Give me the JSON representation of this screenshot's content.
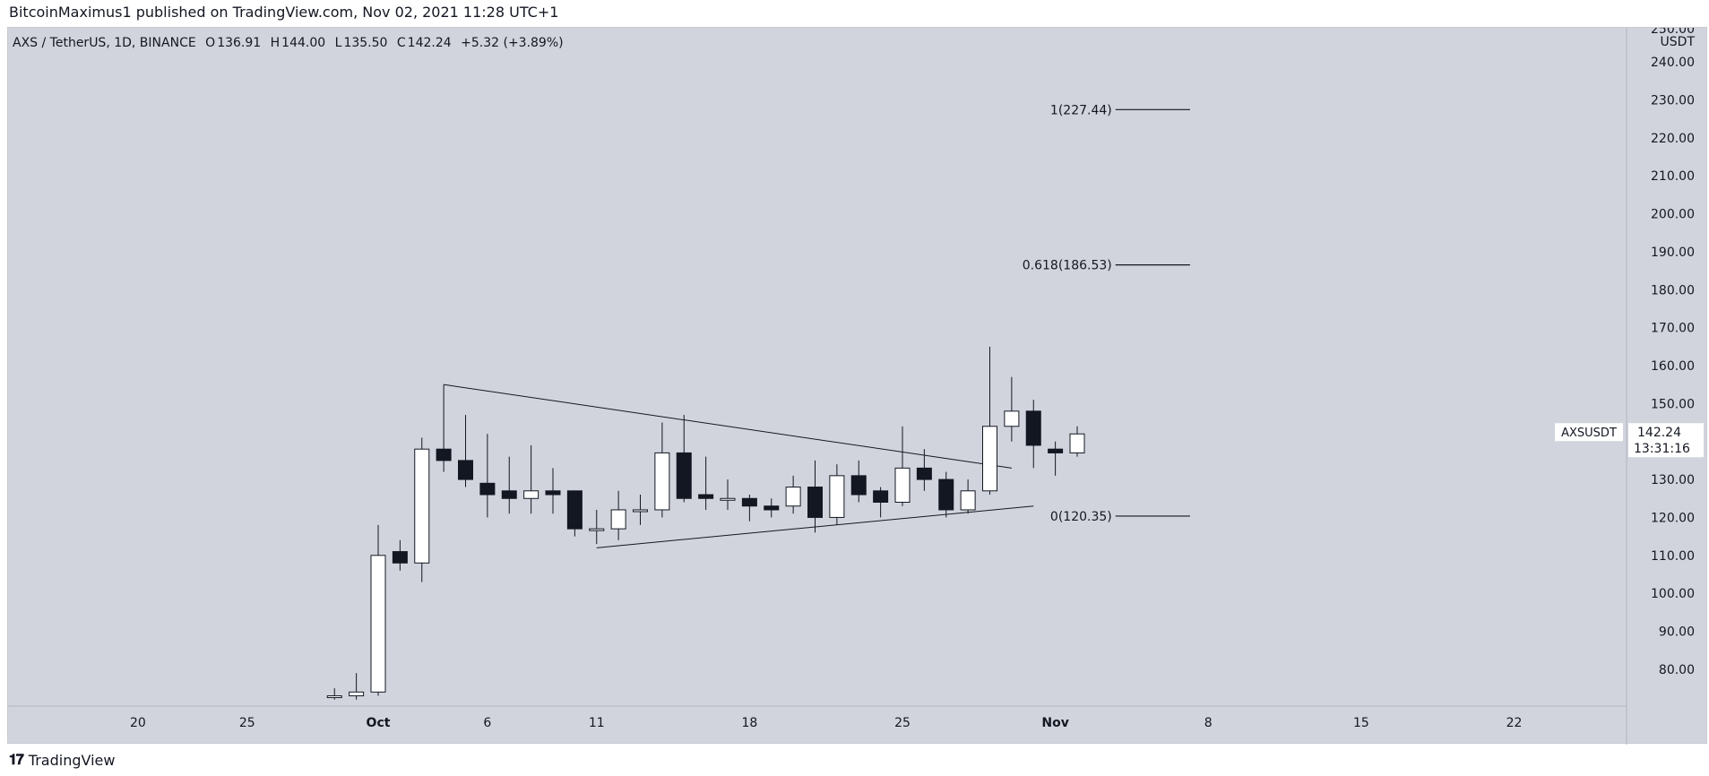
{
  "header": {
    "publish_line": "BitcoinMaximus1 published on TradingView.com, Nov 02, 2021 11:28 UTC+1"
  },
  "legend": {
    "symbol": "AXS / TetherUS, 1D, BINANCE",
    "o_label": "O",
    "o": "136.91",
    "h_label": "H",
    "h": "144.00",
    "l_label": "L",
    "l": "135.50",
    "c_label": "C",
    "c": "142.24",
    "change": "+5.32 (+3.89%)"
  },
  "price_axis": {
    "unit": "USDT",
    "top_label": "250.00"
  },
  "last_price": {
    "symbol": "AXSUSDT",
    "price": "142.24",
    "countdown": "13:31:16"
  },
  "footer": {
    "brand": "TradingView"
  },
  "colors": {
    "bg": "#d1d4dc",
    "up_fill": "#ffffff",
    "down_fill": "#131722",
    "line": "#131722"
  },
  "chart_data": {
    "type": "candlestick",
    "ylim": [
      74,
      254
    ],
    "yticks": [
      80,
      90,
      100,
      110,
      120,
      130,
      140,
      150,
      160,
      170,
      180,
      190,
      200,
      210,
      220,
      230,
      240
    ],
    "x_ticks": [
      {
        "day": -11,
        "label": "20"
      },
      {
        "day": -6,
        "label": "25"
      },
      {
        "day": 0,
        "label": "Oct"
      },
      {
        "day": 5,
        "label": "6"
      },
      {
        "day": 10,
        "label": "11"
      },
      {
        "day": 17,
        "label": "18"
      },
      {
        "day": 24,
        "label": "25"
      },
      {
        "day": 31,
        "label": "Nov"
      },
      {
        "day": 38,
        "label": "8"
      },
      {
        "day": 45,
        "label": "15"
      },
      {
        "day": 52,
        "label": "22"
      }
    ],
    "candles": [
      {
        "d": -2,
        "o": 73,
        "h": 75,
        "l": 72,
        "c": 73
      },
      {
        "d": -1,
        "o": 73,
        "h": 79,
        "l": 72,
        "c": 74
      },
      {
        "d": 0,
        "o": 74,
        "h": 118,
        "l": 73,
        "c": 110
      },
      {
        "d": 1,
        "o": 111,
        "h": 114,
        "l": 106,
        "c": 108
      },
      {
        "d": 2,
        "o": 108,
        "h": 141,
        "l": 103,
        "c": 138
      },
      {
        "d": 3,
        "o": 138,
        "h": 155,
        "l": 132,
        "c": 135
      },
      {
        "d": 4,
        "o": 135,
        "h": 147,
        "l": 128,
        "c": 130
      },
      {
        "d": 5,
        "o": 129,
        "h": 142,
        "l": 120,
        "c": 126
      },
      {
        "d": 6,
        "o": 127,
        "h": 136,
        "l": 121,
        "c": 125
      },
      {
        "d": 7,
        "o": 125,
        "h": 139,
        "l": 121,
        "c": 127
      },
      {
        "d": 8,
        "o": 127,
        "h": 133,
        "l": 121,
        "c": 126
      },
      {
        "d": 9,
        "o": 127,
        "h": 127,
        "l": 115,
        "c": 117
      },
      {
        "d": 10,
        "o": 117,
        "h": 122,
        "l": 113,
        "c": 117
      },
      {
        "d": 11,
        "o": 117,
        "h": 127,
        "l": 114,
        "c": 122
      },
      {
        "d": 12,
        "o": 122,
        "h": 126,
        "l": 118,
        "c": 122
      },
      {
        "d": 13,
        "o": 122,
        "h": 145,
        "l": 120,
        "c": 137
      },
      {
        "d": 14,
        "o": 137,
        "h": 147,
        "l": 124,
        "c": 125
      },
      {
        "d": 15,
        "o": 126,
        "h": 136,
        "l": 122,
        "c": 125
      },
      {
        "d": 16,
        "o": 125,
        "h": 130,
        "l": 122,
        "c": 125
      },
      {
        "d": 17,
        "o": 125,
        "h": 126,
        "l": 119,
        "c": 123
      },
      {
        "d": 18,
        "o": 123,
        "h": 125,
        "l": 120,
        "c": 122
      },
      {
        "d": 19,
        "o": 123,
        "h": 131,
        "l": 121,
        "c": 128
      },
      {
        "d": 20,
        "o": 128,
        "h": 135,
        "l": 116,
        "c": 120
      },
      {
        "d": 21,
        "o": 120,
        "h": 134,
        "l": 118,
        "c": 131
      },
      {
        "d": 22,
        "o": 131,
        "h": 135,
        "l": 124,
        "c": 126
      },
      {
        "d": 23,
        "o": 127,
        "h": 128,
        "l": 120,
        "c": 124
      },
      {
        "d": 24,
        "o": 124,
        "h": 144,
        "l": 123,
        "c": 133
      },
      {
        "d": 25,
        "o": 133,
        "h": 138,
        "l": 127,
        "c": 130
      },
      {
        "d": 26,
        "o": 130,
        "h": 132,
        "l": 120,
        "c": 122
      },
      {
        "d": 27,
        "o": 122,
        "h": 130,
        "l": 121,
        "c": 127
      },
      {
        "d": 28,
        "o": 127,
        "h": 165,
        "l": 126,
        "c": 144
      },
      {
        "d": 29,
        "o": 144,
        "h": 157,
        "l": 140,
        "c": 148
      },
      {
        "d": 30,
        "o": 148,
        "h": 151,
        "l": 133,
        "c": 139
      },
      {
        "d": 31,
        "o": 138,
        "h": 140,
        "l": 131,
        "c": 137
      },
      {
        "d": 32,
        "o": 137,
        "h": 144,
        "l": 136,
        "c": 142
      }
    ],
    "trendlines": [
      {
        "name": "upper",
        "p1": {
          "d": 3,
          "v": 155
        },
        "p2": {
          "d": 29,
          "v": 133
        }
      },
      {
        "name": "lower",
        "p1": {
          "d": 10,
          "v": 112
        },
        "p2": {
          "d": 30,
          "v": 123
        }
      }
    ],
    "fib_levels": [
      {
        "label": "1(227.44)",
        "value": 227.44
      },
      {
        "label": "0.618(186.53)",
        "value": 186.53
      },
      {
        "label": "0(120.35)",
        "value": 120.35
      }
    ],
    "fib_x_start_day": 34,
    "fib_x_end_day": 37
  }
}
